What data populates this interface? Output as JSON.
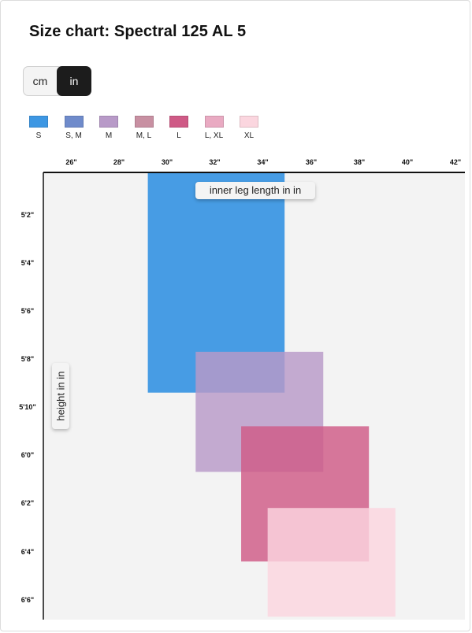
{
  "title": "Size chart: Spectral 125 AL 5",
  "units": {
    "options": [
      "cm",
      "in"
    ],
    "selected": "in"
  },
  "legend": [
    {
      "label": "S",
      "color": "#3d97e3"
    },
    {
      "label": "S, M",
      "color": "#6f8bcb"
    },
    {
      "label": "M",
      "color": "#b89ac8"
    },
    {
      "label": "M, L",
      "color": "#c890a2"
    },
    {
      "label": "L",
      "color": "#cf5a86"
    },
    {
      "label": "L, XL",
      "color": "#e9aac2"
    },
    {
      "label": "XL",
      "color": "#fbd6df"
    }
  ],
  "chart_data": {
    "type": "area",
    "title": "Size chart: Spectral 125 AL 5",
    "xlabel": "inner leg length in in",
    "ylabel": "height in in",
    "xticks": [
      "26\"",
      "28\"",
      "30\"",
      "32\"",
      "34\"",
      "36\"",
      "38\"",
      "40\"",
      "42\""
    ],
    "yticks": [
      "5'2\"",
      "5'4\"",
      "5'6\"",
      "5'8\"",
      "5'10\"",
      "6'0\"",
      "6'2\"",
      "6'4\"",
      "6'6\""
    ],
    "x_range_in": [
      25,
      43
    ],
    "y_range_in": [
      60,
      79
    ],
    "grid": false,
    "legend_position": "top",
    "sizes": [
      {
        "label": "S",
        "inseam_in": [
          29.2,
          34.9
        ],
        "height_in": [
          60,
          69.4
        ],
        "color": "#3d97e3"
      },
      {
        "label": "M",
        "inseam_in": [
          31.2,
          36.5
        ],
        "height_in": [
          67.7,
          72.7
        ],
        "color": "#b89ac8"
      },
      {
        "label": "L",
        "inseam_in": [
          33.1,
          38.4
        ],
        "height_in": [
          70.8,
          76.4
        ],
        "color": "#cf5a86"
      },
      {
        "label": "XL",
        "inseam_in": [
          34.2,
          39.5
        ],
        "height_in": [
          74.2,
          78.7
        ],
        "color": "#fbd6df"
      }
    ],
    "overlaps": [
      {
        "label": "S, M",
        "color": "#6f8bcb"
      },
      {
        "label": "M, L",
        "color": "#c890a2"
      },
      {
        "label": "L, XL",
        "color": "#e9aac2"
      }
    ]
  }
}
